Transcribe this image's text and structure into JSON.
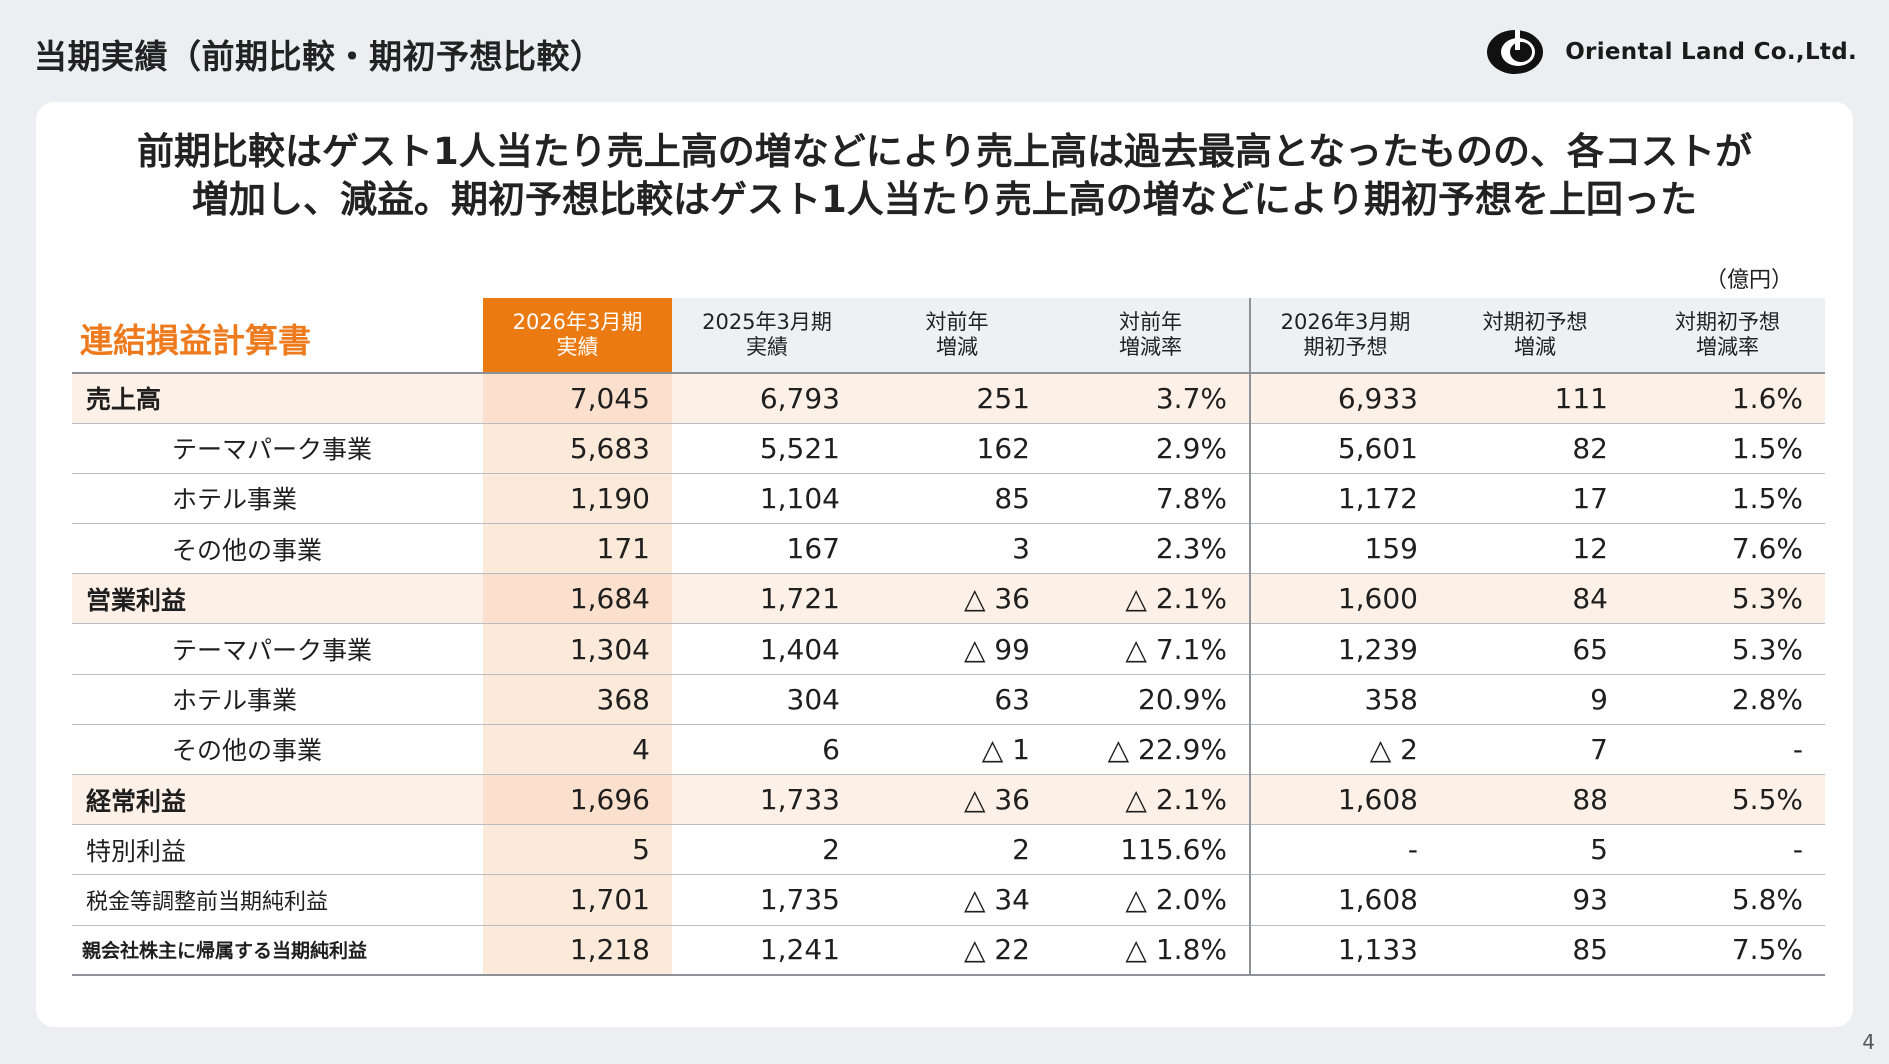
{
  "slide": {
    "title": "当期実績（前期比較・期初予想比較）",
    "page_number": "4"
  },
  "logo": {
    "icon": "oriental-land-logo-icon",
    "text": "Oriental Land Co.,Ltd."
  },
  "headline": {
    "line1": "前期比較はゲスト1人当たり売上高の増などにより売上高は過去最高となったものの、各コストが",
    "line2": "増加し、減益。期初予想比較はゲスト1人当たり売上高の増などにより期初予想を上回った"
  },
  "unit_label": "（億円）",
  "table": {
    "title": "連結損益計算書",
    "columns": [
      {
        "line1": "2026年3月期",
        "line2": "実績"
      },
      {
        "line1": "2025年3月期",
        "line2": "実績"
      },
      {
        "line1": "対前年",
        "line2": "増減"
      },
      {
        "line1": "対前年",
        "line2": "増減率"
      },
      {
        "line1": "2026年3月期",
        "line2": "期初予想"
      },
      {
        "line1": "対期初予想",
        "line2": "増減"
      },
      {
        "line1": "対期初予想",
        "line2": "増減率"
      }
    ],
    "rows": [
      {
        "label": "売上高",
        "values": [
          "7,045",
          "6,793",
          "251",
          "3.7%",
          "6,933",
          "111",
          "1.6%"
        ]
      },
      {
        "label": "テーマパーク事業",
        "values": [
          "5,683",
          "5,521",
          "162",
          "2.9%",
          "5,601",
          "82",
          "1.5%"
        ]
      },
      {
        "label": "ホテル事業",
        "values": [
          "1,190",
          "1,104",
          "85",
          "7.8%",
          "1,172",
          "17",
          "1.5%"
        ]
      },
      {
        "label": "その他の事業",
        "values": [
          "171",
          "167",
          "3",
          "2.3%",
          "159",
          "12",
          "7.6%"
        ]
      },
      {
        "label": "営業利益",
        "values": [
          "1,684",
          "1,721",
          "△ 36",
          "△ 2.1%",
          "1,600",
          "84",
          "5.3%"
        ]
      },
      {
        "label": "テーマパーク事業",
        "values": [
          "1,304",
          "1,404",
          "△ 99",
          "△ 7.1%",
          "1,239",
          "65",
          "5.3%"
        ]
      },
      {
        "label": "ホテル事業",
        "values": [
          "368",
          "304",
          "63",
          "20.9%",
          "358",
          "9",
          "2.8%"
        ]
      },
      {
        "label": "その他の事業",
        "values": [
          "4",
          "6",
          "△ 1",
          "△ 22.9%",
          "△ 2",
          "7",
          "-"
        ]
      },
      {
        "label": "経常利益",
        "values": [
          "1,696",
          "1,733",
          "△ 36",
          "△ 2.1%",
          "1,608",
          "88",
          "5.5%"
        ]
      },
      {
        "label": "特別利益",
        "values": [
          "5",
          "2",
          "2",
          "115.6%",
          "-",
          "5",
          "-"
        ]
      },
      {
        "label": "税金等調整前当期純利益",
        "values": [
          "1,701",
          "1,735",
          "△ 34",
          "△ 2.0%",
          "1,608",
          "93",
          "5.8%"
        ]
      },
      {
        "label": "親会社株主に帰属する当期純利益",
        "values": [
          "1,218",
          "1,241",
          "△ 22",
          "△ 1.8%",
          "1,133",
          "85",
          "7.5%"
        ]
      }
    ]
  },
  "colors": {
    "accent_orange": "#ec7a12",
    "highlight_row": "#fdf1e7",
    "highlight_col": "#fbe9da",
    "header_bg": "#eef1f4",
    "page_bg": "#eceef1"
  }
}
